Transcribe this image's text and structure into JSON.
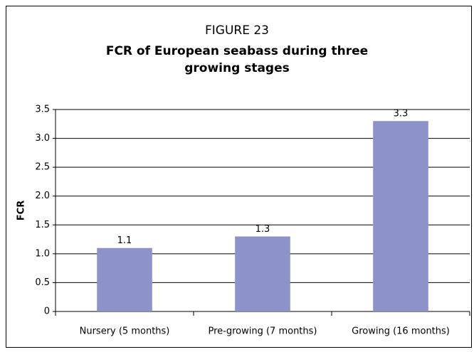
{
  "chart_data": {
    "type": "bar",
    "subtitle": "FIGURE 23",
    "title": "FCR of European seabass during three growing stages",
    "y_label": "FCR",
    "categories": [
      "Nursery (5 months)",
      "Pre-growing (7 months)",
      "Growing (16 months)"
    ],
    "values": [
      1.1,
      1.3,
      3.3
    ],
    "color": "#8b93c8",
    "ylim": [
      0,
      3.5
    ],
    "yticks": [
      0,
      0.5,
      {
        "value": 1,
        "label": "1.0"
      },
      1.5,
      {
        "value": 2,
        "label": "2.0"
      },
      2.5,
      {
        "value": 3,
        "label": "3.0"
      },
      3.5
    ],
    "grid": true
  }
}
